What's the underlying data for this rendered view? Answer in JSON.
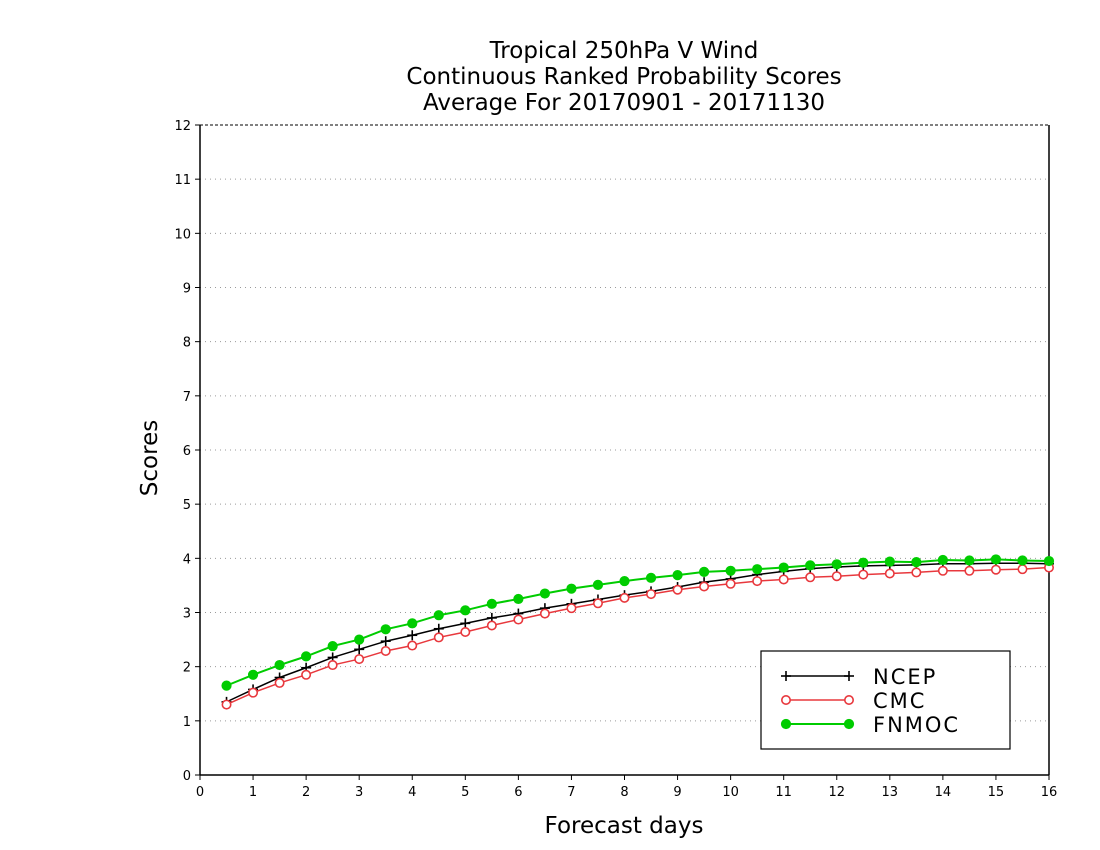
{
  "chart_data": {
    "type": "line",
    "title": [
      "Tropical 250hPa V Wind",
      "Continuous Ranked Probability Scores",
      "Average For 20170901 - 20171130"
    ],
    "xlabel": "Forecast days",
    "ylabel": "Scores",
    "xlim": [
      0,
      16
    ],
    "ylim": [
      0,
      12
    ],
    "xticks": [
      0,
      1,
      2,
      3,
      4,
      5,
      6,
      7,
      8,
      9,
      10,
      11,
      12,
      13,
      14,
      15,
      16
    ],
    "yticks": [
      0,
      1,
      2,
      3,
      4,
      5,
      6,
      7,
      8,
      9,
      10,
      11,
      12
    ],
    "grid": true,
    "legend_position": "bottom-right",
    "x": [
      0.5,
      1,
      1.5,
      2,
      2.5,
      3,
      3.5,
      4,
      4.5,
      5,
      5.5,
      6,
      6.5,
      7,
      7.5,
      8,
      8.5,
      9,
      9.5,
      10,
      10.5,
      11,
      11.5,
      12,
      12.5,
      13,
      13.5,
      14,
      14.5,
      15,
      15.5,
      16
    ],
    "series": [
      {
        "name": "NCEP",
        "color": "#000000",
        "marker": "plus",
        "values": [
          1.35,
          1.58,
          1.8,
          1.98,
          2.17,
          2.32,
          2.47,
          2.58,
          2.7,
          2.8,
          2.9,
          2.98,
          3.08,
          3.16,
          3.24,
          3.32,
          3.39,
          3.47,
          3.56,
          3.62,
          3.7,
          3.76,
          3.81,
          3.84,
          3.86,
          3.87,
          3.88,
          3.9,
          3.9,
          3.91,
          3.91,
          3.9
        ]
      },
      {
        "name": "CMC",
        "color": "#e8383d",
        "marker": "open-circle",
        "values": [
          1.3,
          1.52,
          1.7,
          1.85,
          2.03,
          2.14,
          2.29,
          2.39,
          2.54,
          2.64,
          2.76,
          2.87,
          2.98,
          3.08,
          3.17,
          3.27,
          3.34,
          3.42,
          3.48,
          3.53,
          3.58,
          3.61,
          3.65,
          3.67,
          3.7,
          3.72,
          3.74,
          3.77,
          3.77,
          3.79,
          3.8,
          3.83
        ]
      },
      {
        "name": "FNMOC",
        "color": "#00cc00",
        "marker": "filled-circle",
        "values": [
          1.65,
          1.85,
          2.03,
          2.19,
          2.38,
          2.5,
          2.69,
          2.8,
          2.95,
          3.04,
          3.16,
          3.25,
          3.35,
          3.44,
          3.51,
          3.58,
          3.64,
          3.69,
          3.75,
          3.77,
          3.8,
          3.83,
          3.87,
          3.89,
          3.92,
          3.94,
          3.93,
          3.97,
          3.96,
          3.98,
          3.96,
          3.95
        ]
      }
    ]
  }
}
